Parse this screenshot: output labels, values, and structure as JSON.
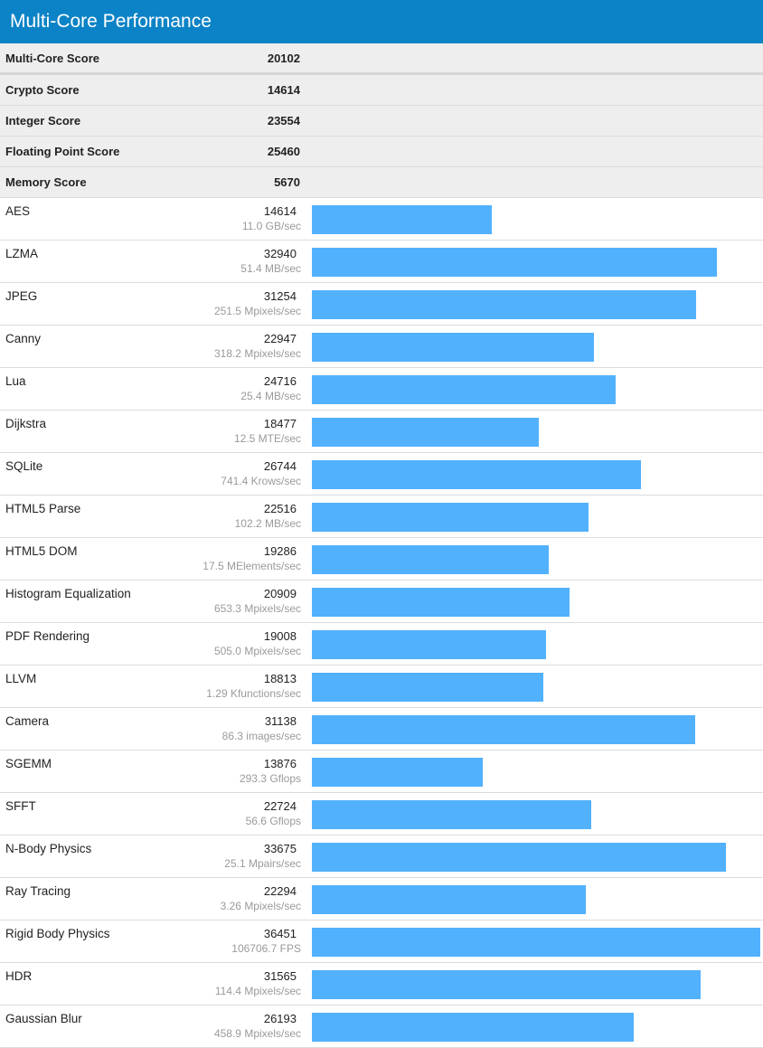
{
  "title": "Multi-Core Performance",
  "colors": {
    "header": "#0c83c6",
    "bar": "#52b1fd"
  },
  "summary": [
    {
      "name": "Multi-Core Score",
      "score": "20102"
    },
    {
      "name": "Crypto Score",
      "score": "14614"
    },
    {
      "name": "Integer Score",
      "score": "23554"
    },
    {
      "name": "Floating Point Score",
      "score": "25460"
    },
    {
      "name": "Memory Score",
      "score": "5670"
    }
  ],
  "benchmarks": [
    {
      "name": "AES",
      "score": "14614",
      "rate": "11.0 GB/sec",
      "value": 14614
    },
    {
      "name": "LZMA",
      "score": "32940",
      "rate": "51.4 MB/sec",
      "value": 32940
    },
    {
      "name": "JPEG",
      "score": "31254",
      "rate": "251.5 Mpixels/sec",
      "value": 31254
    },
    {
      "name": "Canny",
      "score": "22947",
      "rate": "318.2 Mpixels/sec",
      "value": 22947
    },
    {
      "name": "Lua",
      "score": "24716",
      "rate": "25.4 MB/sec",
      "value": 24716
    },
    {
      "name": "Dijkstra",
      "score": "18477",
      "rate": "12.5 MTE/sec",
      "value": 18477
    },
    {
      "name": "SQLite",
      "score": "26744",
      "rate": "741.4 Krows/sec",
      "value": 26744
    },
    {
      "name": "HTML5 Parse",
      "score": "22516",
      "rate": "102.2 MB/sec",
      "value": 22516
    },
    {
      "name": "HTML5 DOM",
      "score": "19286",
      "rate": "17.5 MElements/sec",
      "value": 19286
    },
    {
      "name": "Histogram Equalization",
      "score": "20909",
      "rate": "653.3 Mpixels/sec",
      "value": 20909
    },
    {
      "name": "PDF Rendering",
      "score": "19008",
      "rate": "505.0 Mpixels/sec",
      "value": 19008
    },
    {
      "name": "LLVM",
      "score": "18813",
      "rate": "1.29 Kfunctions/sec",
      "value": 18813
    },
    {
      "name": "Camera",
      "score": "31138",
      "rate": "86.3 images/sec",
      "value": 31138
    },
    {
      "name": "SGEMM",
      "score": "13876",
      "rate": "293.3 Gflops",
      "value": 13876
    },
    {
      "name": "SFFT",
      "score": "22724",
      "rate": "56.6 Gflops",
      "value": 22724
    },
    {
      "name": "N-Body Physics",
      "score": "33675",
      "rate": "25.1 Mpairs/sec",
      "value": 33675
    },
    {
      "name": "Ray Tracing",
      "score": "22294",
      "rate": "3.26 Mpixels/sec",
      "value": 22294
    },
    {
      "name": "Rigid Body Physics",
      "score": "36451",
      "rate": "106706.7 FPS",
      "value": 36451
    },
    {
      "name": "HDR",
      "score": "31565",
      "rate": "114.4 Mpixels/sec",
      "value": 31565
    },
    {
      "name": "Gaussian Blur",
      "score": "26193",
      "rate": "458.9 Mpixels/sec",
      "value": 26193
    }
  ]
}
